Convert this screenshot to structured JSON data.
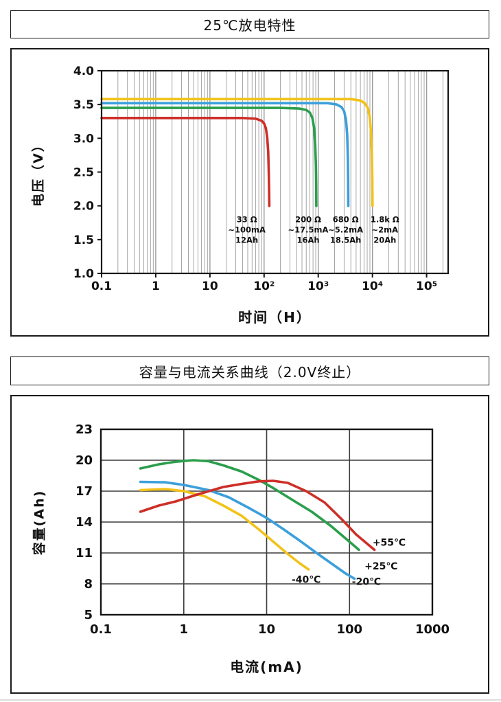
{
  "chart_data": [
    {
      "type": "line",
      "title": "25℃放电特性",
      "xlabel": "时间（H）",
      "ylabel": "电压（V）",
      "x_scale": "log",
      "xlim": [
        0.1,
        100000
      ],
      "ylim": [
        1.0,
        4.0
      ],
      "xticks": [
        0.1,
        1,
        10,
        100,
        1000,
        10000,
        100000
      ],
      "xtick_labels": [
        "0.1",
        "1",
        "10",
        "10²",
        "10³",
        "10⁴",
        "10⁵"
      ],
      "yticks": [
        1.0,
        1.5,
        2.0,
        2.5,
        3.0,
        3.5,
        4.0
      ],
      "ytick_labels": [
        "1.0",
        "1.5",
        "2.0",
        "2.5",
        "3.0",
        "3.5",
        "4.0"
      ],
      "minor_grid": true,
      "hgrid": false,
      "series": [
        {
          "name": "33Ω ~100mA 12Ah",
          "color": "#cd2f28",
          "points": [
            [
              0.1,
              3.3
            ],
            [
              1,
              3.3
            ],
            [
              10,
              3.3
            ],
            [
              40,
              3.3
            ],
            [
              70,
              3.29
            ],
            [
              90,
              3.26
            ],
            [
              100,
              3.22
            ],
            [
              108,
              3.15
            ],
            [
              114,
              3.02
            ],
            [
              119,
              2.8
            ],
            [
              122,
              2.5
            ],
            [
              124,
              2.2
            ],
            [
              125,
              2.0
            ]
          ]
        },
        {
          "name": "200Ω ~17.5mA 16Ah",
          "color": "#2b9e4c",
          "points": [
            [
              0.1,
              3.45
            ],
            [
              1,
              3.45
            ],
            [
              10,
              3.45
            ],
            [
              200,
              3.45
            ],
            [
              450,
              3.44
            ],
            [
              600,
              3.42
            ],
            [
              700,
              3.38
            ],
            [
              780,
              3.3
            ],
            [
              840,
              3.15
            ],
            [
              880,
              2.9
            ],
            [
              905,
              2.6
            ],
            [
              915,
              2.3
            ],
            [
              920,
              2.0
            ]
          ]
        },
        {
          "name": "680Ω ~5.2mA 18.5Ah",
          "color": "#3b9fdb",
          "points": [
            [
              0.1,
              3.52
            ],
            [
              1,
              3.52
            ],
            [
              100,
              3.52
            ],
            [
              1500,
              3.52
            ],
            [
              2200,
              3.5
            ],
            [
              2700,
              3.46
            ],
            [
              3000,
              3.4
            ],
            [
              3250,
              3.28
            ],
            [
              3420,
              3.05
            ],
            [
              3520,
              2.7
            ],
            [
              3570,
              2.35
            ],
            [
              3590,
              2.0
            ]
          ]
        },
        {
          "name": "1.8kΩ ~2mA 20Ah",
          "color": "#f2c219",
          "points": [
            [
              0.1,
              3.58
            ],
            [
              1,
              3.58
            ],
            [
              100,
              3.58
            ],
            [
              4000,
              3.58
            ],
            [
              6000,
              3.56
            ],
            [
              7200,
              3.52
            ],
            [
              8200,
              3.45
            ],
            [
              8900,
              3.32
            ],
            [
              9400,
              3.1
            ],
            [
              9750,
              2.8
            ],
            [
              9950,
              2.4
            ],
            [
              10050,
              2.0
            ]
          ]
        }
      ],
      "annotations": [
        {
          "x": 48,
          "y": 1.76,
          "lines": [
            "33 Ω",
            "~100mA",
            "12Ah"
          ]
        },
        {
          "x": 650,
          "y": 1.76,
          "lines": [
            "200 Ω",
            "~17.5mA",
            "16Ah"
          ]
        },
        {
          "x": 3200,
          "y": 1.76,
          "lines": [
            "680 Ω",
            "~5.2mA",
            "18.5Ah"
          ]
        },
        {
          "x": 17000,
          "y": 1.76,
          "lines": [
            "1.8k Ω",
            "~2mA",
            "20Ah"
          ]
        }
      ]
    },
    {
      "type": "line",
      "title": "容量与电流关系曲线（2.0V终止）",
      "xlabel": "电流(mA)",
      "ylabel": "容量(Ah)",
      "x_scale": "log",
      "xlim": [
        0.1,
        1000
      ],
      "ylim": [
        5,
        23
      ],
      "xticks": [
        0.1,
        1,
        10,
        100,
        1000
      ],
      "xtick_labels": [
        "0.1",
        "1",
        "10",
        "100",
        "1000"
      ],
      "yticks": [
        5,
        8,
        11,
        14,
        17,
        20,
        23
      ],
      "ytick_labels": [
        "5",
        "8",
        "11",
        "14",
        "17",
        "20",
        "23"
      ],
      "minor_grid": false,
      "hgrid": true,
      "series": [
        {
          "name": "+55℃",
          "color": "#cd2f28",
          "points": [
            [
              0.3,
              15
            ],
            [
              0.5,
              15.6
            ],
            [
              0.8,
              16
            ],
            [
              1.5,
              16.7
            ],
            [
              3,
              17.4
            ],
            [
              5,
              17.7
            ],
            [
              8,
              17.95
            ],
            [
              12,
              18
            ],
            [
              18,
              17.8
            ],
            [
              30,
              17
            ],
            [
              50,
              15.9
            ],
            [
              80,
              14.3
            ],
            [
              120,
              12.8
            ],
            [
              200,
              11.3
            ]
          ]
        },
        {
          "name": "+25℃",
          "color": "#2b9e4c",
          "points": [
            [
              0.3,
              19.2
            ],
            [
              0.5,
              19.6
            ],
            [
              0.8,
              19.85
            ],
            [
              1.3,
              20
            ],
            [
              2,
              19.9
            ],
            [
              3,
              19.5
            ],
            [
              5,
              18.9
            ],
            [
              8,
              18.1
            ],
            [
              12,
              17.3
            ],
            [
              20,
              16.2
            ],
            [
              35,
              15
            ],
            [
              60,
              13.6
            ],
            [
              90,
              12.4
            ],
            [
              130,
              11.3
            ]
          ]
        },
        {
          "name": "-20℃",
          "color": "#3b9fdb",
          "points": [
            [
              0.3,
              17.9
            ],
            [
              0.6,
              17.85
            ],
            [
              1,
              17.6
            ],
            [
              2,
              17.1
            ],
            [
              3.5,
              16.4
            ],
            [
              6,
              15.4
            ],
            [
              10,
              14.4
            ],
            [
              16,
              13.3
            ],
            [
              25,
              12.2
            ],
            [
              40,
              11
            ],
            [
              65,
              9.8
            ],
            [
              90,
              9
            ],
            [
              115,
              8.5
            ]
          ]
        },
        {
          "name": "-40℃",
          "color": "#f2c219",
          "points": [
            [
              0.3,
              17.1
            ],
            [
              0.6,
              17.2
            ],
            [
              1,
              17
            ],
            [
              1.8,
              16.5
            ],
            [
              3,
              15.6
            ],
            [
              5,
              14.6
            ],
            [
              8,
              13.3
            ],
            [
              12,
              12.1
            ],
            [
              18,
              10.9
            ],
            [
              25,
              10
            ],
            [
              32,
              9.4
            ]
          ]
        }
      ],
      "annotations": [
        {
          "x": 300,
          "y": 11.7,
          "lines": [
            "+55℃"
          ]
        },
        {
          "x": 240,
          "y": 9.4,
          "lines": [
            "+25℃"
          ]
        },
        {
          "x": 30,
          "y": 8.1,
          "lines": [
            "-40℃"
          ]
        },
        {
          "x": 160,
          "y": 7.9,
          "lines": [
            "-20℃"
          ]
        }
      ]
    }
  ]
}
